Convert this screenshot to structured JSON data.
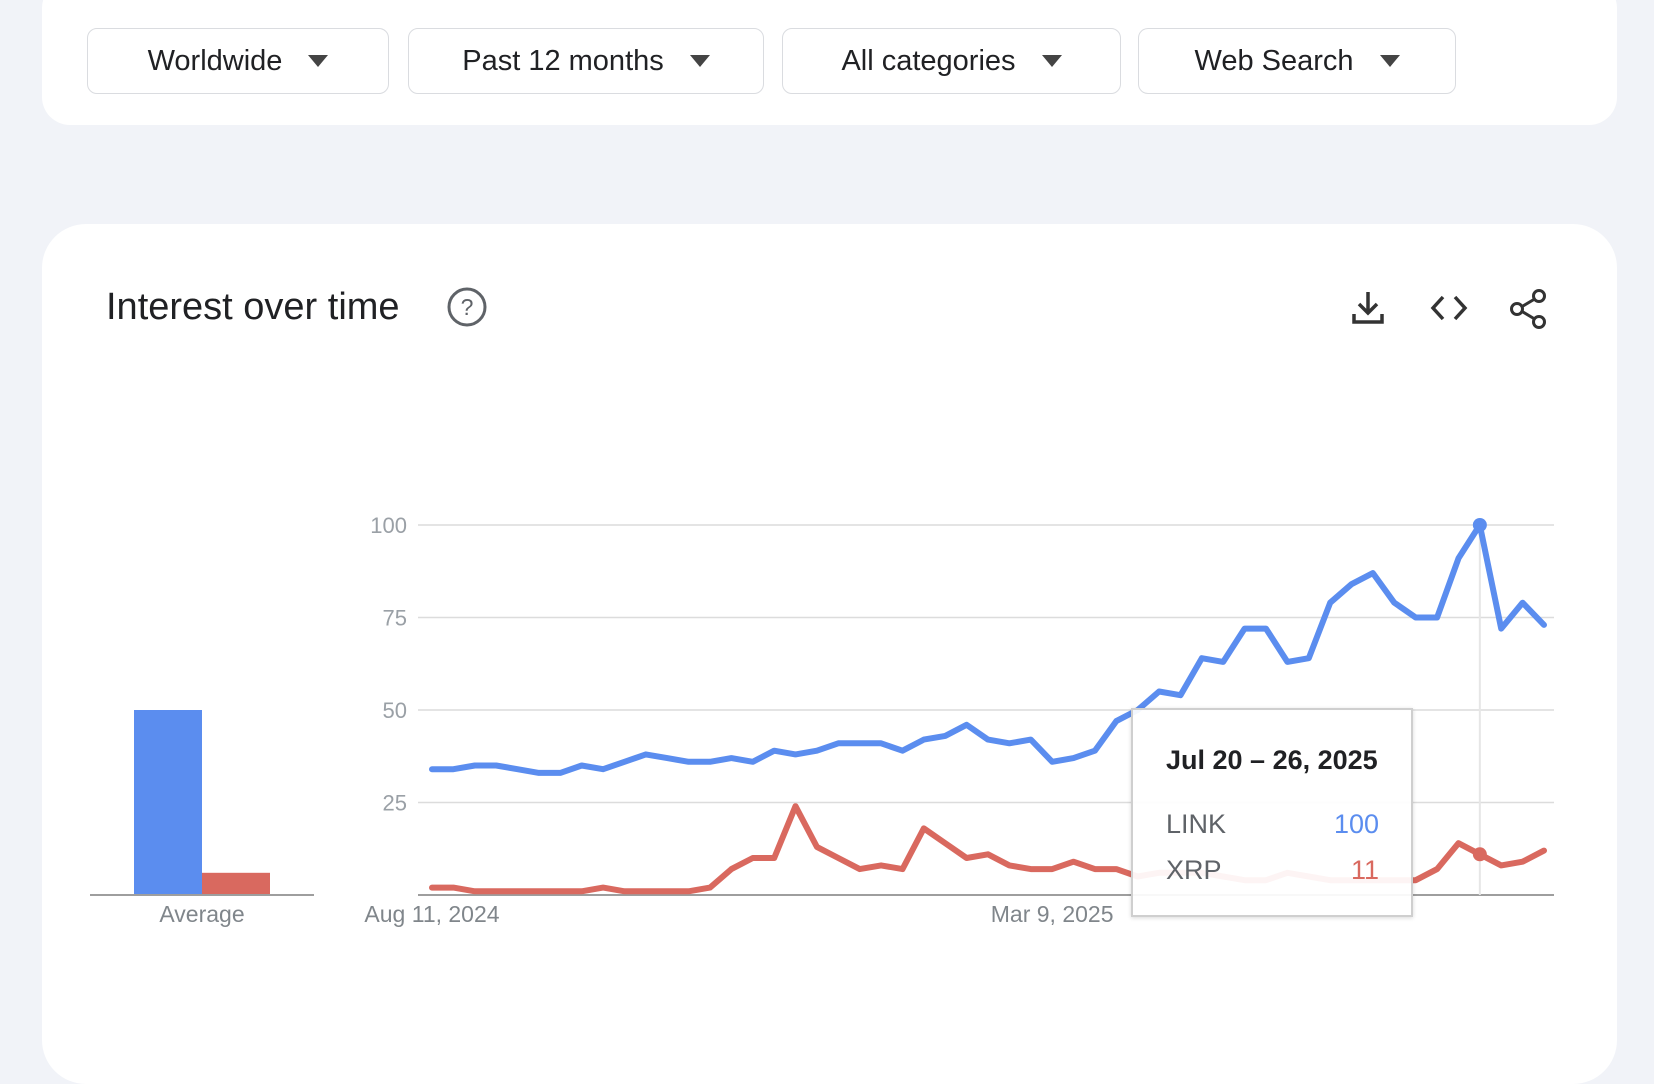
{
  "filters": [
    {
      "label": "Worldwide"
    },
    {
      "label": "Past 12 months"
    },
    {
      "label": "All categories"
    },
    {
      "label": "Web Search"
    }
  ],
  "card": {
    "title": "Interest over time",
    "icons": [
      "help-icon",
      "download-icon",
      "embed-code-icon",
      "share-icon"
    ]
  },
  "colors": {
    "link": "#5b8def",
    "xrp": "#d9695f",
    "grid": "#dcdcdc",
    "axis": "#9e9e9e"
  },
  "tooltip": {
    "date": "Jul 20 – 26, 2025",
    "rows": [
      {
        "name": "LINK",
        "value": "100"
      },
      {
        "name": "XRP",
        "value": "11"
      }
    ]
  },
  "chart_data": [
    {
      "type": "bar",
      "categories": [
        "Average"
      ],
      "series": [
        {
          "name": "LINK",
          "values": [
            50
          ]
        },
        {
          "name": "XRP",
          "values": [
            6
          ]
        }
      ],
      "ylim": [
        0,
        100
      ]
    },
    {
      "type": "line",
      "x_tick_labels": [
        "Aug 11, 2024",
        "Mar 9, 2025"
      ],
      "y_ticks": [
        25,
        50,
        75,
        100
      ],
      "ylim": [
        0,
        100
      ],
      "grid": true,
      "series": [
        {
          "name": "LINK",
          "values": [
            34,
            34,
            35,
            35,
            34,
            33,
            33,
            35,
            34,
            36,
            38,
            37,
            36,
            36,
            37,
            36,
            39,
            38,
            39,
            41,
            41,
            41,
            39,
            42,
            43,
            46,
            42,
            41,
            42,
            36,
            37,
            39,
            47,
            50,
            55,
            54,
            64,
            63,
            72,
            72,
            63,
            64,
            79,
            84,
            87,
            79,
            75,
            75,
            91,
            100,
            72,
            79,
            73
          ]
        },
        {
          "name": "XRP",
          "values": [
            2,
            2,
            1,
            1,
            1,
            1,
            1,
            1,
            2,
            1,
            1,
            1,
            1,
            2,
            7,
            10,
            10,
            24,
            13,
            10,
            7,
            8,
            7,
            18,
            14,
            10,
            11,
            8,
            7,
            7,
            9,
            7,
            7,
            5,
            6,
            6,
            6,
            5,
            4,
            4,
            6,
            5,
            4,
            4,
            4,
            4,
            4,
            7,
            14,
            11,
            8,
            9,
            12
          ]
        }
      ],
      "highlight": {
        "series_index": 0,
        "point_index": 49
      }
    }
  ]
}
